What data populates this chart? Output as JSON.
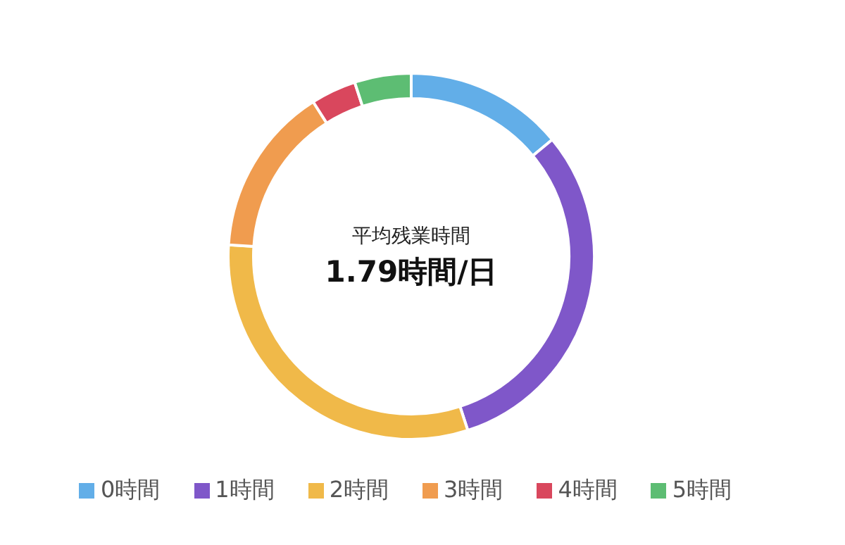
{
  "chart_data": {
    "type": "donut",
    "title": "平均残業時間",
    "subtitle": "1.79時間/日",
    "categories": [
      "0時間",
      "1時間",
      "2時間",
      "3時間",
      "4時間",
      "5時間"
    ],
    "values": [
      14,
      31,
      31,
      15,
      4,
      5
    ],
    "colors": [
      "#62aee8",
      "#7f57c9",
      "#f0b949",
      "#f09c4f",
      "#d9475d",
      "#5dbd73"
    ],
    "legend": "bottom"
  }
}
